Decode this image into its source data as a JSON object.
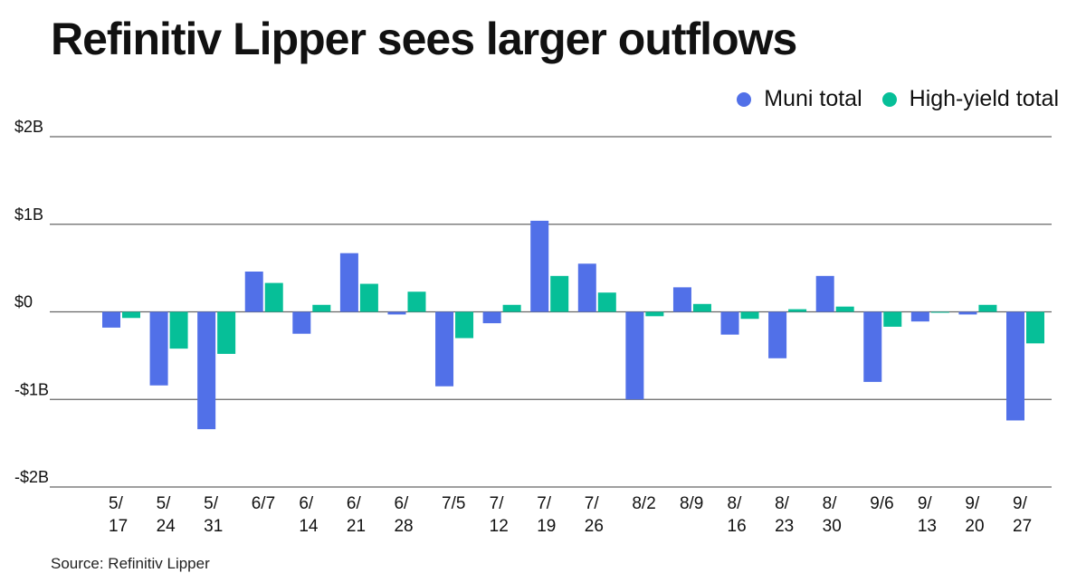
{
  "title": "Refinitiv Lipper sees larger outflows",
  "source": "Source: Refinitiv Lipper",
  "colors": {
    "muni": "#5170E8",
    "high_yield": "#06BF98",
    "grid": "#666666"
  },
  "legend": [
    {
      "label": "Muni total",
      "color": "#5170E8"
    },
    {
      "label": "High-yield total",
      "color": "#06BF98"
    }
  ],
  "chart_data": {
    "type": "bar",
    "title": "Refinitiv Lipper sees larger outflows",
    "xlabel": "",
    "ylabel": "",
    "ylim": [
      -2,
      2
    ],
    "unit": "$B",
    "yticks": [
      {
        "value": 2,
        "label": "$2B"
      },
      {
        "value": 1,
        "label": "$1B"
      },
      {
        "value": 0,
        "label": "$0"
      },
      {
        "value": -1,
        "label": "-$1B"
      },
      {
        "value": -2,
        "label": "-$2B"
      }
    ],
    "grid": true,
    "legend_position": "top-right",
    "categories": [
      "5/17",
      "5/24",
      "5/31",
      "6/7",
      "6/14",
      "6/21",
      "6/28",
      "7/5",
      "7/12",
      "7/19",
      "7/26",
      "8/2",
      "8/9",
      "8/16",
      "8/23",
      "8/30",
      "9/6",
      "9/13",
      "9/20",
      "9/27"
    ],
    "category_label_lines": [
      [
        "5/",
        "17"
      ],
      [
        "5/",
        "24"
      ],
      [
        "5/",
        "31"
      ],
      [
        "6/7"
      ],
      [
        "6/",
        "14"
      ],
      [
        "6/",
        "21"
      ],
      [
        "6/",
        "28"
      ],
      [
        "7/5"
      ],
      [
        "7/",
        "12"
      ],
      [
        "7/",
        "19"
      ],
      [
        "7/",
        "26"
      ],
      [
        "8/2"
      ],
      [
        "8/9"
      ],
      [
        "8/",
        "16"
      ],
      [
        "8/",
        "23"
      ],
      [
        "8/",
        "30"
      ],
      [
        "9/6"
      ],
      [
        "9/",
        "13"
      ],
      [
        "9/",
        "20"
      ],
      [
        "9/",
        "27"
      ]
    ],
    "series": [
      {
        "name": "Muni total",
        "color": "#5170E8",
        "values": [
          -0.18,
          -0.84,
          -1.34,
          0.46,
          -0.25,
          0.67,
          -0.03,
          -0.85,
          -0.13,
          1.04,
          0.55,
          -1.0,
          0.28,
          -0.26,
          -0.53,
          0.41,
          -0.8,
          -0.11,
          -0.03,
          -1.24
        ]
      },
      {
        "name": "High-yield total",
        "color": "#06BF98",
        "values": [
          -0.07,
          -0.42,
          -0.48,
          0.33,
          0.08,
          0.32,
          0.23,
          -0.3,
          0.08,
          0.41,
          0.22,
          -0.05,
          0.09,
          -0.08,
          0.03,
          0.06,
          -0.17,
          -0.01,
          0.08,
          -0.36
        ]
      }
    ]
  }
}
